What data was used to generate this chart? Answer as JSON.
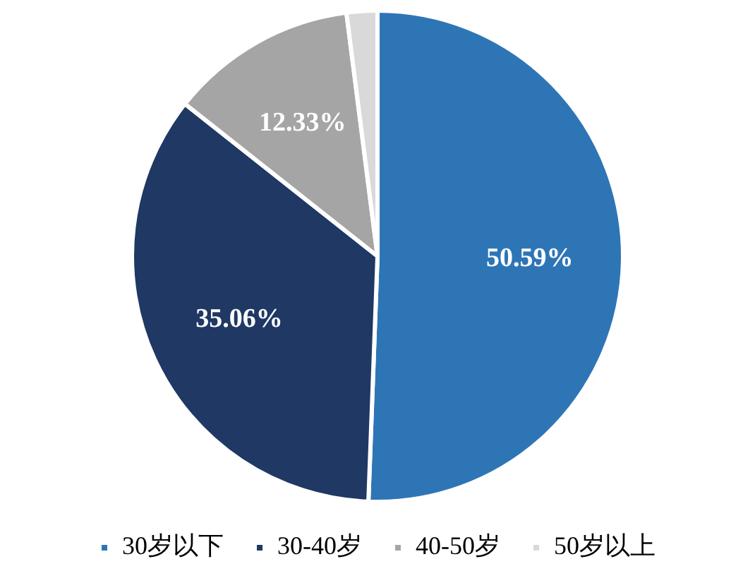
{
  "chart_data": {
    "type": "pie",
    "categories": [
      "30岁以下",
      "30-40岁",
      "40-50岁",
      "50岁以上"
    ],
    "values": [
      50.59,
      35.06,
      12.33,
      2.02
    ],
    "colors": [
      "#2e75b6",
      "#1f3864",
      "#a5a5a5",
      "#d9d9d9"
    ],
    "value_labels": [
      "50.59%",
      "35.06%",
      "12.33%",
      null
    ],
    "legend": "bottom"
  }
}
